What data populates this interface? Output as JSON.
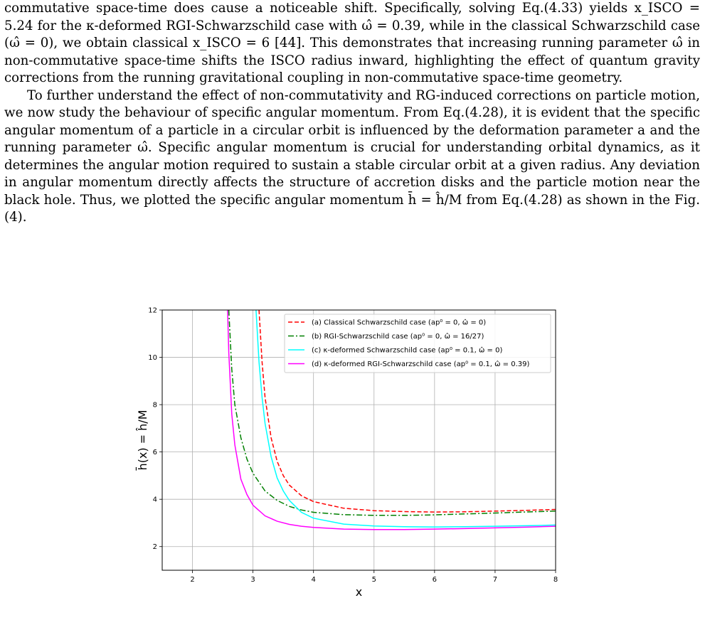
{
  "paragraphs": [
    "commutative space-time does cause a noticeable shift. Specifically, solving Eq.(4.33) yields x_ISCO = 5.24 for the κ-deformed RGI-Schwarzschild case with ω̂ = 0.39, while in the classical Schwarzschild case (ω̂ = 0), we obtain classical x_ISCO = 6 [44]. This demonstrates that increasing running parameter ω̂ in non-commutative space-time shifts the ISCO radius inward, highlighting the effect of quantum gravity corrections from the running gravitational coupling in non-commutative space-time geometry.",
    "To further understand the effect of non-commutativity and RG-induced corrections on particle motion, we now study the behaviour of specific angular momentum. From Eq.(4.28), it is evident that the specific angular momentum of a particle in a circular orbit is influenced by the deformation parameter a and the running parameter ω̂. Specific angular momentum is crucial for understanding orbital dynamics, as it determines the angular motion required to sustain a stable circular orbit at a given radius. Any deviation in angular momentum directly affects the structure of accretion disks and the particle motion near the black hole. Thus, we plotted the specific angular momentum h̄ = ĥ/M from Eq.(4.28) as shown in the Fig.(4)."
  ],
  "chart_data": {
    "type": "line",
    "xlabel": "x",
    "ylabel": "h̄(x) = ĥ/M",
    "xlim": [
      1.5,
      8
    ],
    "ylim": [
      1,
      12
    ],
    "xticks": [
      2,
      3,
      4,
      5,
      6,
      7,
      8
    ],
    "yticks": [
      2,
      4,
      6,
      8,
      10,
      12
    ],
    "grid": true,
    "legend_position": "upper-right",
    "series": [
      {
        "name": "(a) Classical Schwarzschild case (ap⁰ = 0, ω̂ = 0)",
        "color": "#ff0000",
        "dash": "dashed",
        "x": [
          3.1,
          3.15,
          3.2,
          3.3,
          3.4,
          3.5,
          3.6,
          3.8,
          4.0,
          4.5,
          5.0,
          5.5,
          6.0,
          6.5,
          7.0,
          7.5,
          8.0
        ],
        "y": [
          12.0,
          9.8,
          8.3,
          6.6,
          5.6,
          5.0,
          4.6,
          4.15,
          3.9,
          3.62,
          3.52,
          3.48,
          3.46,
          3.47,
          3.5,
          3.53,
          3.57
        ]
      },
      {
        "name": "(b) RGI-Schwarzschild case (ap⁰ = 0, ω̂ = 16/27)",
        "color": "#008000",
        "dash": "dashdot",
        "x": [
          2.6,
          2.65,
          2.7,
          2.8,
          2.9,
          3.0,
          3.2,
          3.4,
          3.6,
          3.8,
          4.0,
          4.5,
          5.0,
          5.5,
          6.0,
          6.5,
          7.0,
          7.5,
          8.0
        ],
        "y": [
          12.0,
          9.5,
          8.0,
          6.6,
          5.7,
          5.1,
          4.35,
          3.95,
          3.7,
          3.55,
          3.45,
          3.35,
          3.32,
          3.32,
          3.34,
          3.38,
          3.42,
          3.46,
          3.5
        ]
      },
      {
        "name": "(c) κ-deformed Schwarzschild case (ap⁰ = 0.1, ω̂ = 0)",
        "color": "#00ffff",
        "dash": "solid",
        "x": [
          3.05,
          3.1,
          3.15,
          3.2,
          3.3,
          3.4,
          3.5,
          3.6,
          3.8,
          4.0,
          4.5,
          5.0,
          5.5,
          6.0,
          6.5,
          7.0,
          7.5,
          8.0
        ],
        "y": [
          12.0,
          9.8,
          8.3,
          7.2,
          5.8,
          4.9,
          4.35,
          3.95,
          3.45,
          3.2,
          2.95,
          2.87,
          2.84,
          2.83,
          2.84,
          2.86,
          2.88,
          2.91
        ]
      },
      {
        "name": "(d) κ-deformed RGI-Schwarzschild case (ap⁰ = 0.1, ω̂ = 0.39)",
        "color": "#ff00ff",
        "dash": "solid",
        "x": [
          2.58,
          2.6,
          2.65,
          2.7,
          2.8,
          2.9,
          3.0,
          3.2,
          3.4,
          3.6,
          3.8,
          4.0,
          4.5,
          5.0,
          5.5,
          6.0,
          6.5,
          7.0,
          7.5,
          8.0
        ],
        "y": [
          12.0,
          10.2,
          7.6,
          6.3,
          4.85,
          4.2,
          3.75,
          3.3,
          3.07,
          2.94,
          2.86,
          2.81,
          2.74,
          2.72,
          2.72,
          2.74,
          2.76,
          2.79,
          2.82,
          2.86
        ]
      }
    ]
  }
}
